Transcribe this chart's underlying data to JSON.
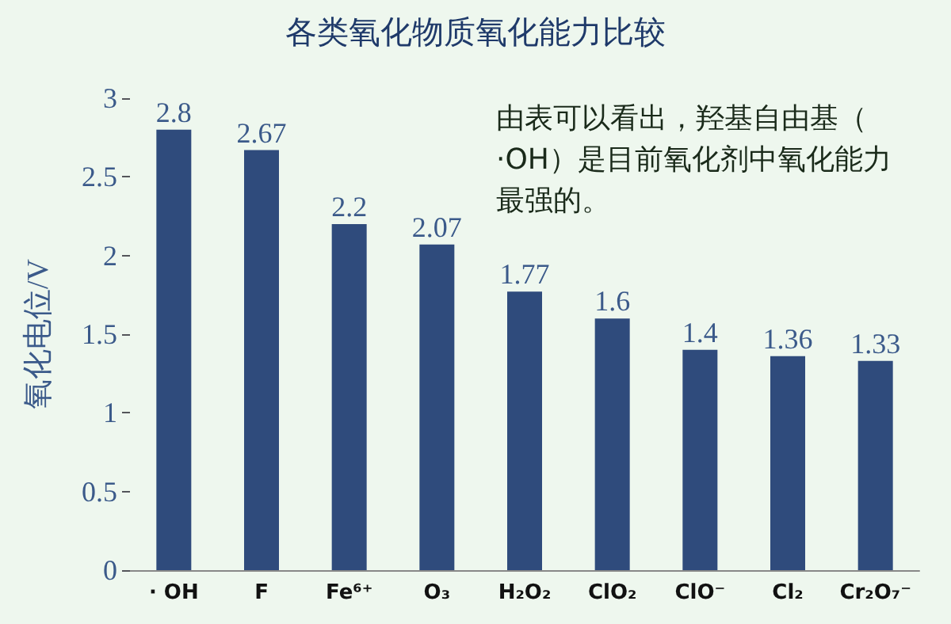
{
  "chart_data": {
    "type": "bar",
    "title": "各类氧化物质氧化能力比较",
    "ylabel": "氧化电位/V",
    "categories": [
      "· OH",
      "F",
      "Fe⁶⁺",
      "O₃",
      "H₂O₂",
      "ClO₂",
      "ClO⁻",
      "Cl₂",
      "Cr₂O₇⁻"
    ],
    "values": [
      2.8,
      2.67,
      2.2,
      2.07,
      1.77,
      1.6,
      1.4,
      1.36,
      1.33
    ],
    "color": "#2f4b7c",
    "ylim": [
      0,
      3
    ],
    "yticks": [
      0,
      0.5,
      1,
      1.5,
      2,
      2.5,
      3
    ],
    "grid": false,
    "data_labels": true,
    "annotations": [
      "由表可以看出，羟基自由基（·OH）是目前氧化剂中氧化能力最强的。"
    ]
  }
}
